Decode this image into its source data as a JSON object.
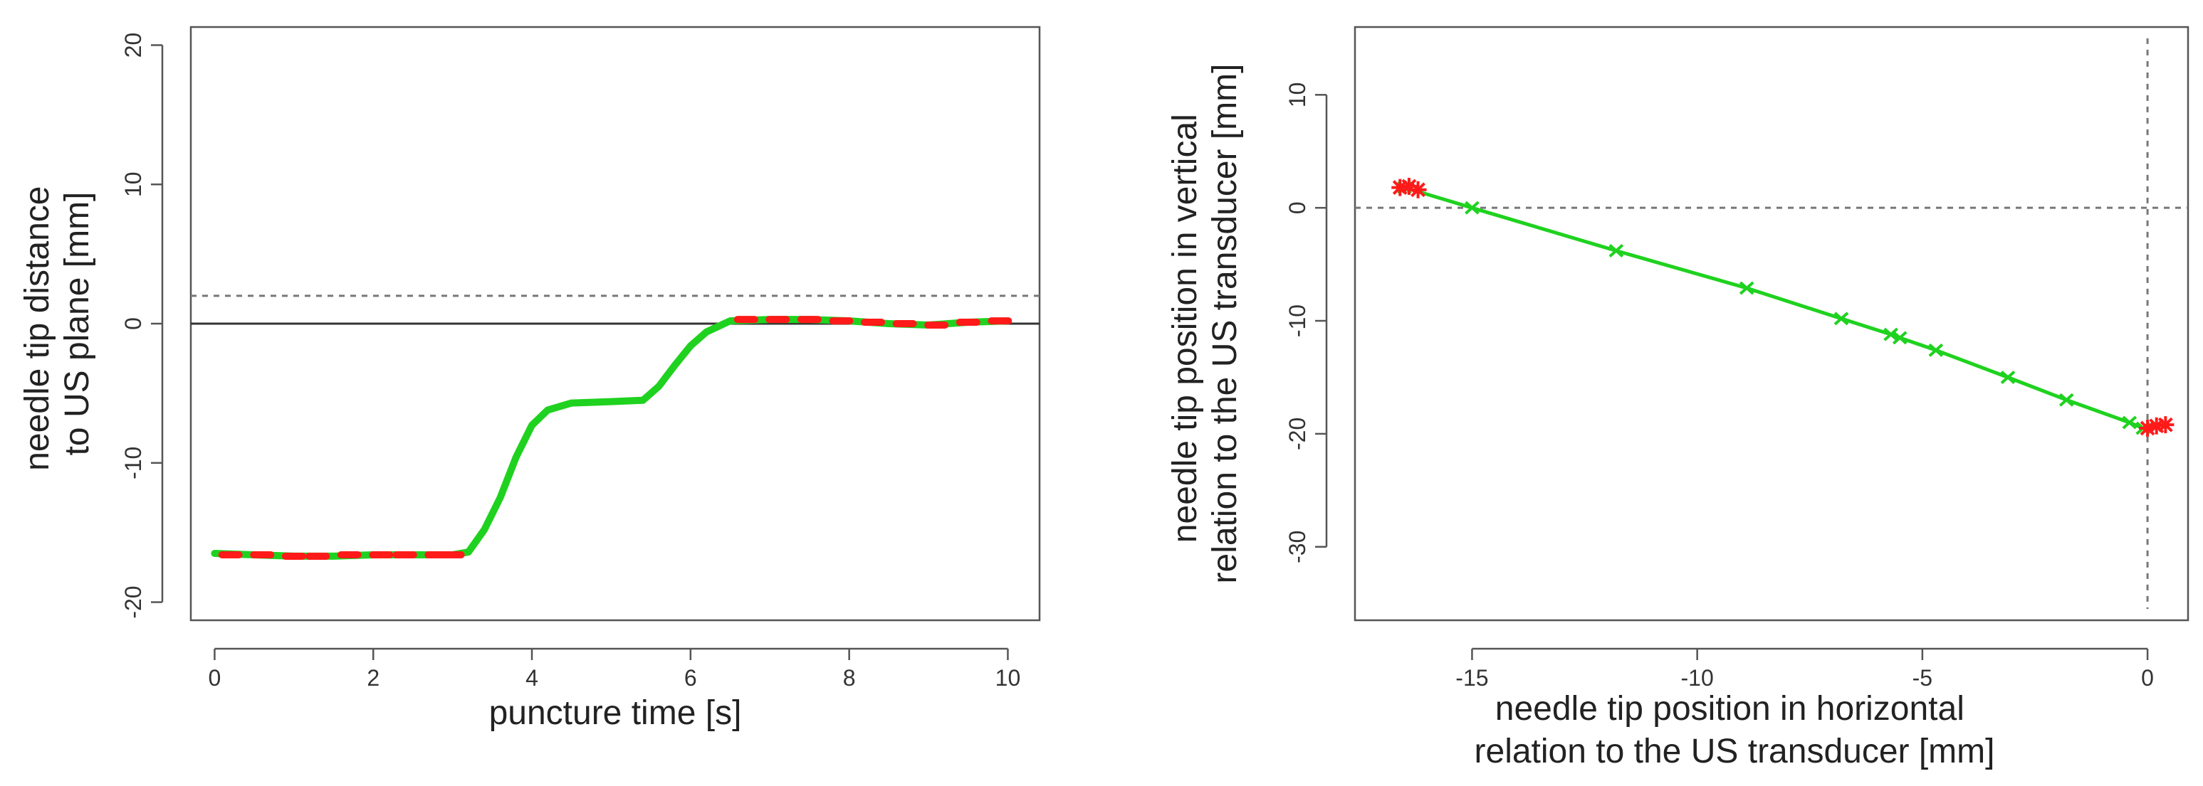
{
  "chart_data": [
    {
      "id": "left",
      "type": "line",
      "title": "",
      "xlabel": "puncture time [s]",
      "ylabel_lines": [
        "needle tip distance",
        "to US plane [mm]"
      ],
      "xlim": [
        -0.3,
        10.4
      ],
      "ylim": [
        -21.3,
        21.3
      ],
      "xticks": [
        0,
        2,
        4,
        6,
        8,
        10
      ],
      "yticks": [
        -20,
        -10,
        0,
        10,
        20
      ],
      "colors": {
        "line": "#1fd21f",
        "points": "#ff1a1a",
        "axis": "#555555",
        "zero_line": "#333333",
        "dashed": "#777777"
      },
      "reference_lines": [
        {
          "axis": "y",
          "value": 0,
          "style": "solid"
        },
        {
          "axis": "y",
          "value": 2,
          "style": "dashed"
        }
      ],
      "series": [
        {
          "x": [
            0,
            0.5,
            1,
            1.5,
            2,
            2.5,
            3,
            3.2,
            3.4,
            3.6,
            3.8,
            4.0,
            4.2,
            4.5,
            5.0,
            5.4,
            5.6,
            5.8,
            6.0,
            6.2,
            6.5,
            7.0,
            7.5,
            8.0,
            8.5,
            9.0,
            9.5,
            10.0
          ],
          "y": [
            -16.5,
            -16.6,
            -16.7,
            -16.7,
            -16.6,
            -16.6,
            -16.6,
            -16.4,
            -14.8,
            -12.5,
            -9.6,
            -7.3,
            -6.2,
            -5.7,
            -5.6,
            -5.5,
            -4.5,
            -3.0,
            -1.6,
            -0.6,
            0.2,
            0.3,
            0.3,
            0.2,
            0.0,
            -0.1,
            0.1,
            0.2
          ]
        }
      ],
      "point_markers": [
        {
          "x": [
            0.2,
            0.6,
            1.0,
            1.3,
            1.7,
            2.1,
            2.4,
            2.8,
            3.0
          ],
          "y": [
            -16.6,
            -16.6,
            -16.7,
            -16.7,
            -16.6,
            -16.6,
            -16.6,
            -16.6,
            -16.6
          ]
        },
        {
          "x": [
            6.7,
            7.1,
            7.5,
            7.9,
            8.3,
            8.7,
            9.1,
            9.5,
            9.9
          ],
          "y": [
            0.3,
            0.3,
            0.3,
            0.2,
            0.1,
            0.0,
            -0.1,
            0.1,
            0.2
          ]
        }
      ]
    },
    {
      "id": "right",
      "type": "line",
      "title": "",
      "xlabel_lines": [
        "needle tip position in horizontal",
        "relation to the US transducer [mm]"
      ],
      "ylabel_lines": [
        "needle tip position in vertical",
        "relation to the US transducer [mm]"
      ],
      "xlim": [
        -17.6,
        0.9
      ],
      "ylim": [
        -36.5,
        16
      ],
      "xticks": [
        -15,
        -10,
        -5,
        0
      ],
      "yticks": [
        -30,
        -20,
        -10,
        0,
        10
      ],
      "colors": {
        "line": "#1fd21f",
        "points": "#ff1a1a",
        "axis": "#555555",
        "dashed": "#777777"
      },
      "reference_lines": [
        {
          "axis": "y",
          "value": 0,
          "style": "dashed"
        },
        {
          "axis": "x",
          "value": 0,
          "style": "dashed",
          "y_range": [
            -35.5,
            15
          ]
        }
      ],
      "series": [
        {
          "x": [
            -16.5,
            -15.0,
            -11.8,
            -8.9,
            -6.8,
            -5.7,
            -5.5,
            -4.7,
            -3.1,
            -1.8,
            -0.4,
            -0.1
          ],
          "y": [
            1.8,
            0.0,
            -3.8,
            -7.1,
            -9.8,
            -11.2,
            -11.5,
            -12.6,
            -15.0,
            -17.0,
            -19.0,
            -19.5
          ]
        }
      ],
      "point_markers": [
        {
          "x": [
            -16.6,
            -16.4,
            -16.2
          ],
          "y": [
            1.8,
            1.9,
            1.6
          ]
        },
        {
          "x": [
            0.0,
            0.2,
            0.4
          ],
          "y": [
            -19.5,
            -19.3,
            -19.2
          ]
        }
      ]
    }
  ]
}
